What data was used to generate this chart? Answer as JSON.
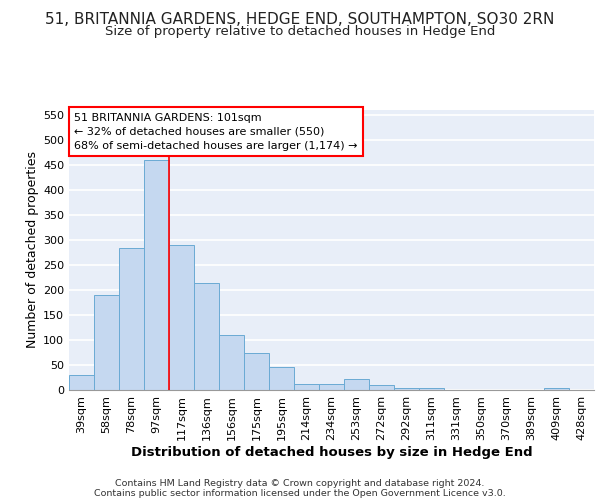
{
  "title_line1": "51, BRITANNIA GARDENS, HEDGE END, SOUTHAMPTON, SO30 2RN",
  "title_line2": "Size of property relative to detached houses in Hedge End",
  "xlabel": "Distribution of detached houses by size in Hedge End",
  "ylabel": "Number of detached properties",
  "footer_line1": "Contains HM Land Registry data © Crown copyright and database right 2024.",
  "footer_line2": "Contains public sector information licensed under the Open Government Licence v3.0.",
  "categories": [
    "39sqm",
    "58sqm",
    "78sqm",
    "97sqm",
    "117sqm",
    "136sqm",
    "156sqm",
    "175sqm",
    "195sqm",
    "214sqm",
    "234sqm",
    "253sqm",
    "272sqm",
    "292sqm",
    "311sqm",
    "331sqm",
    "350sqm",
    "370sqm",
    "389sqm",
    "409sqm",
    "428sqm"
  ],
  "values": [
    30,
    190,
    285,
    460,
    290,
    215,
    110,
    75,
    47,
    13,
    12,
    22,
    10,
    5,
    5,
    0,
    0,
    0,
    0,
    5,
    0
  ],
  "bar_color": "#c5d8f0",
  "bar_edge_color": "#6aaad4",
  "red_line_x": 3.5,
  "annotation_text": "51 BRITANNIA GARDENS: 101sqm\n← 32% of detached houses are smaller (550)\n68% of semi-detached houses are larger (1,174) →",
  "ylim": [
    0,
    560
  ],
  "yticks": [
    0,
    50,
    100,
    150,
    200,
    250,
    300,
    350,
    400,
    450,
    500,
    550
  ],
  "background_color": "#e8eef8",
  "grid_color": "#ffffff",
  "title_fontsize": 11,
  "subtitle_fontsize": 9.5,
  "axis_label_fontsize": 9,
  "tick_fontsize": 8,
  "footer_fontsize": 6.8
}
